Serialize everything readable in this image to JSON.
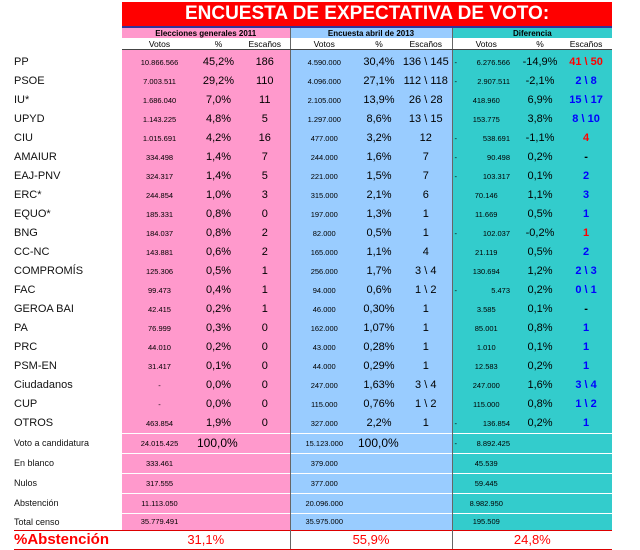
{
  "title": "ENCUESTA DE EXPECTATIVA DE VOTO:",
  "groups": [
    "Elecciones generales 2011",
    "Encuesta abril de 2013",
    "Diferencia"
  ],
  "subheaders": [
    "Votos",
    "%",
    "Escaños",
    "Votos",
    "%",
    "Escaños",
    "Votos",
    "%",
    "Escaños"
  ],
  "rows": [
    {
      "party": "PP",
      "cells": [
        "10.866.566",
        "45,2%",
        "186",
        "4.590.000",
        "30,4%",
        "136 \\ 145",
        "- 6.276.566",
        "-14,9%",
        "41 \\ 50"
      ],
      "color": "#ff0000"
    },
    {
      "party": "PSOE",
      "cells": [
        "7.003.511",
        "29,2%",
        "110",
        "4.096.000",
        "27,1%",
        "112 \\ 118",
        "- 2.907.511",
        "-2,1%",
        "2 \\ 8"
      ],
      "color": "#0000ff"
    },
    {
      "party": "IU*",
      "cells": [
        "1.686.040",
        "7,0%",
        "11",
        "2.105.000",
        "13,9%",
        "26 \\ 28",
        "418.960",
        "6,9%",
        "15 \\ 17"
      ],
      "color": "#0000ff"
    },
    {
      "party": "UPYD",
      "cells": [
        "1.143.225",
        "4,8%",
        "5",
        "1.297.000",
        "8,6%",
        "13 \\ 15",
        "153.775",
        "3,8%",
        "8 \\ 10"
      ],
      "color": "#0000ff"
    },
    {
      "party": "CIU",
      "cells": [
        "1.015.691",
        "4,2%",
        "16",
        "477.000",
        "3,2%",
        "12",
        "- 538.691",
        "-1,1%",
        "4"
      ],
      "color": "#ff0000"
    },
    {
      "party": "AMAIUR",
      "cells": [
        "334.498",
        "1,4%",
        "7",
        "244.000",
        "1,6%",
        "7",
        "- 90.498",
        "0,2%",
        "-"
      ],
      "color": "#000000"
    },
    {
      "party": "EAJ-PNV",
      "cells": [
        "324.317",
        "1,4%",
        "5",
        "221.000",
        "1,5%",
        "7",
        "- 103.317",
        "0,1%",
        "2"
      ],
      "color": "#0000ff"
    },
    {
      "party": "ERC*",
      "cells": [
        "244.854",
        "1,0%",
        "3",
        "315.000",
        "2,1%",
        "6",
        "70.146",
        "1,1%",
        "3"
      ],
      "color": "#0000ff"
    },
    {
      "party": "EQUO*",
      "cells": [
        "185.331",
        "0,8%",
        "0",
        "197.000",
        "1,3%",
        "1",
        "11.669",
        "0,5%",
        "1"
      ],
      "color": "#0000ff"
    },
    {
      "party": "BNG",
      "cells": [
        "184.037",
        "0,8%",
        "2",
        "82.000",
        "0,5%",
        "1",
        "- 102.037",
        "-0,2%",
        "1"
      ],
      "color": "#ff0000"
    },
    {
      "party": "CC-NC",
      "cells": [
        "143.881",
        "0,6%",
        "2",
        "165.000",
        "1,1%",
        "4",
        "21.119",
        "0,5%",
        "2"
      ],
      "color": "#0000ff"
    },
    {
      "party": "COMPROMÍS",
      "cells": [
        "125.306",
        "0,5%",
        "1",
        "256.000",
        "1,7%",
        "3 \\ 4",
        "130.694",
        "1,2%",
        "2 \\ 3"
      ],
      "color": "#0000ff"
    },
    {
      "party": "FAC",
      "cells": [
        "99.473",
        "0,4%",
        "1",
        "94.000",
        "0,6%",
        "1 \\ 2",
        "- 5.473",
        "0,2%",
        "0 \\ 1"
      ],
      "color": "#0000ff"
    },
    {
      "party": "GEROA BAI",
      "cells": [
        "42.415",
        "0,2%",
        "1",
        "46.000",
        "0,30%",
        "1",
        "3.585",
        "0,1%",
        "-"
      ],
      "color": "#000000"
    },
    {
      "party": "PA",
      "cells": [
        "76.999",
        "0,3%",
        "0",
        "162.000",
        "1,07%",
        "1",
        "85.001",
        "0,8%",
        "1"
      ],
      "color": "#0000ff"
    },
    {
      "party": "PRC",
      "cells": [
        "44.010",
        "0,2%",
        "0",
        "43.000",
        "0,28%",
        "1",
        "1.010",
        "0,1%",
        "1"
      ],
      "color": "#0000ff"
    },
    {
      "party": "PSM-EN",
      "cells": [
        "31.417",
        "0,1%",
        "0",
        "44.000",
        "0,29%",
        "1",
        "12.583",
        "0,2%",
        "1"
      ],
      "color": "#0000ff"
    },
    {
      "party": "Ciudadanos",
      "cells": [
        "-",
        "0,0%",
        "0",
        "247.000",
        "1,63%",
        "3 \\ 4",
        "247.000",
        "1,6%",
        "3 \\ 4"
      ],
      "color": "#0000ff"
    },
    {
      "party": "CUP",
      "cells": [
        "-",
        "0,0%",
        "0",
        "115.000",
        "0,76%",
        "1 \\ 2",
        "115.000",
        "0,8%",
        "1 \\ 2"
      ],
      "color": "#0000ff"
    },
    {
      "party": "OTROS",
      "cells": [
        "463.854",
        "1,9%",
        "0",
        "327.000",
        "2,2%",
        "1",
        "- 136.854",
        "0,2%",
        "1"
      ],
      "color": "#0000ff"
    }
  ],
  "totals": [
    {
      "label": "Voto a candidatura",
      "cells": [
        "24.015.425",
        "100,0%",
        null,
        "15.123.000",
        "100,0%",
        null,
        "- 8.892.425",
        null,
        null
      ]
    },
    {
      "label": "En blanco",
      "cells": [
        "333.461",
        null,
        null,
        "379.000",
        null,
        null,
        "45.539",
        null,
        null
      ]
    },
    {
      "label": "Nulos",
      "cells": [
        "317.555",
        null,
        null,
        "377.000",
        null,
        null,
        "59.445",
        null,
        null
      ]
    },
    {
      "label": "Abstención",
      "cells": [
        "11.113.050",
        null,
        null,
        "20.096.000",
        null,
        null,
        "8.982.950",
        null,
        null
      ]
    },
    {
      "label": "Total censo",
      "cells": [
        "35.779.491",
        null,
        null,
        "35.975.000",
        null,
        null,
        "195.509",
        null,
        null
      ]
    }
  ],
  "abstention": {
    "label": "%Abstención",
    "values": [
      "31,1%",
      "55,9%",
      "24,8%"
    ]
  }
}
